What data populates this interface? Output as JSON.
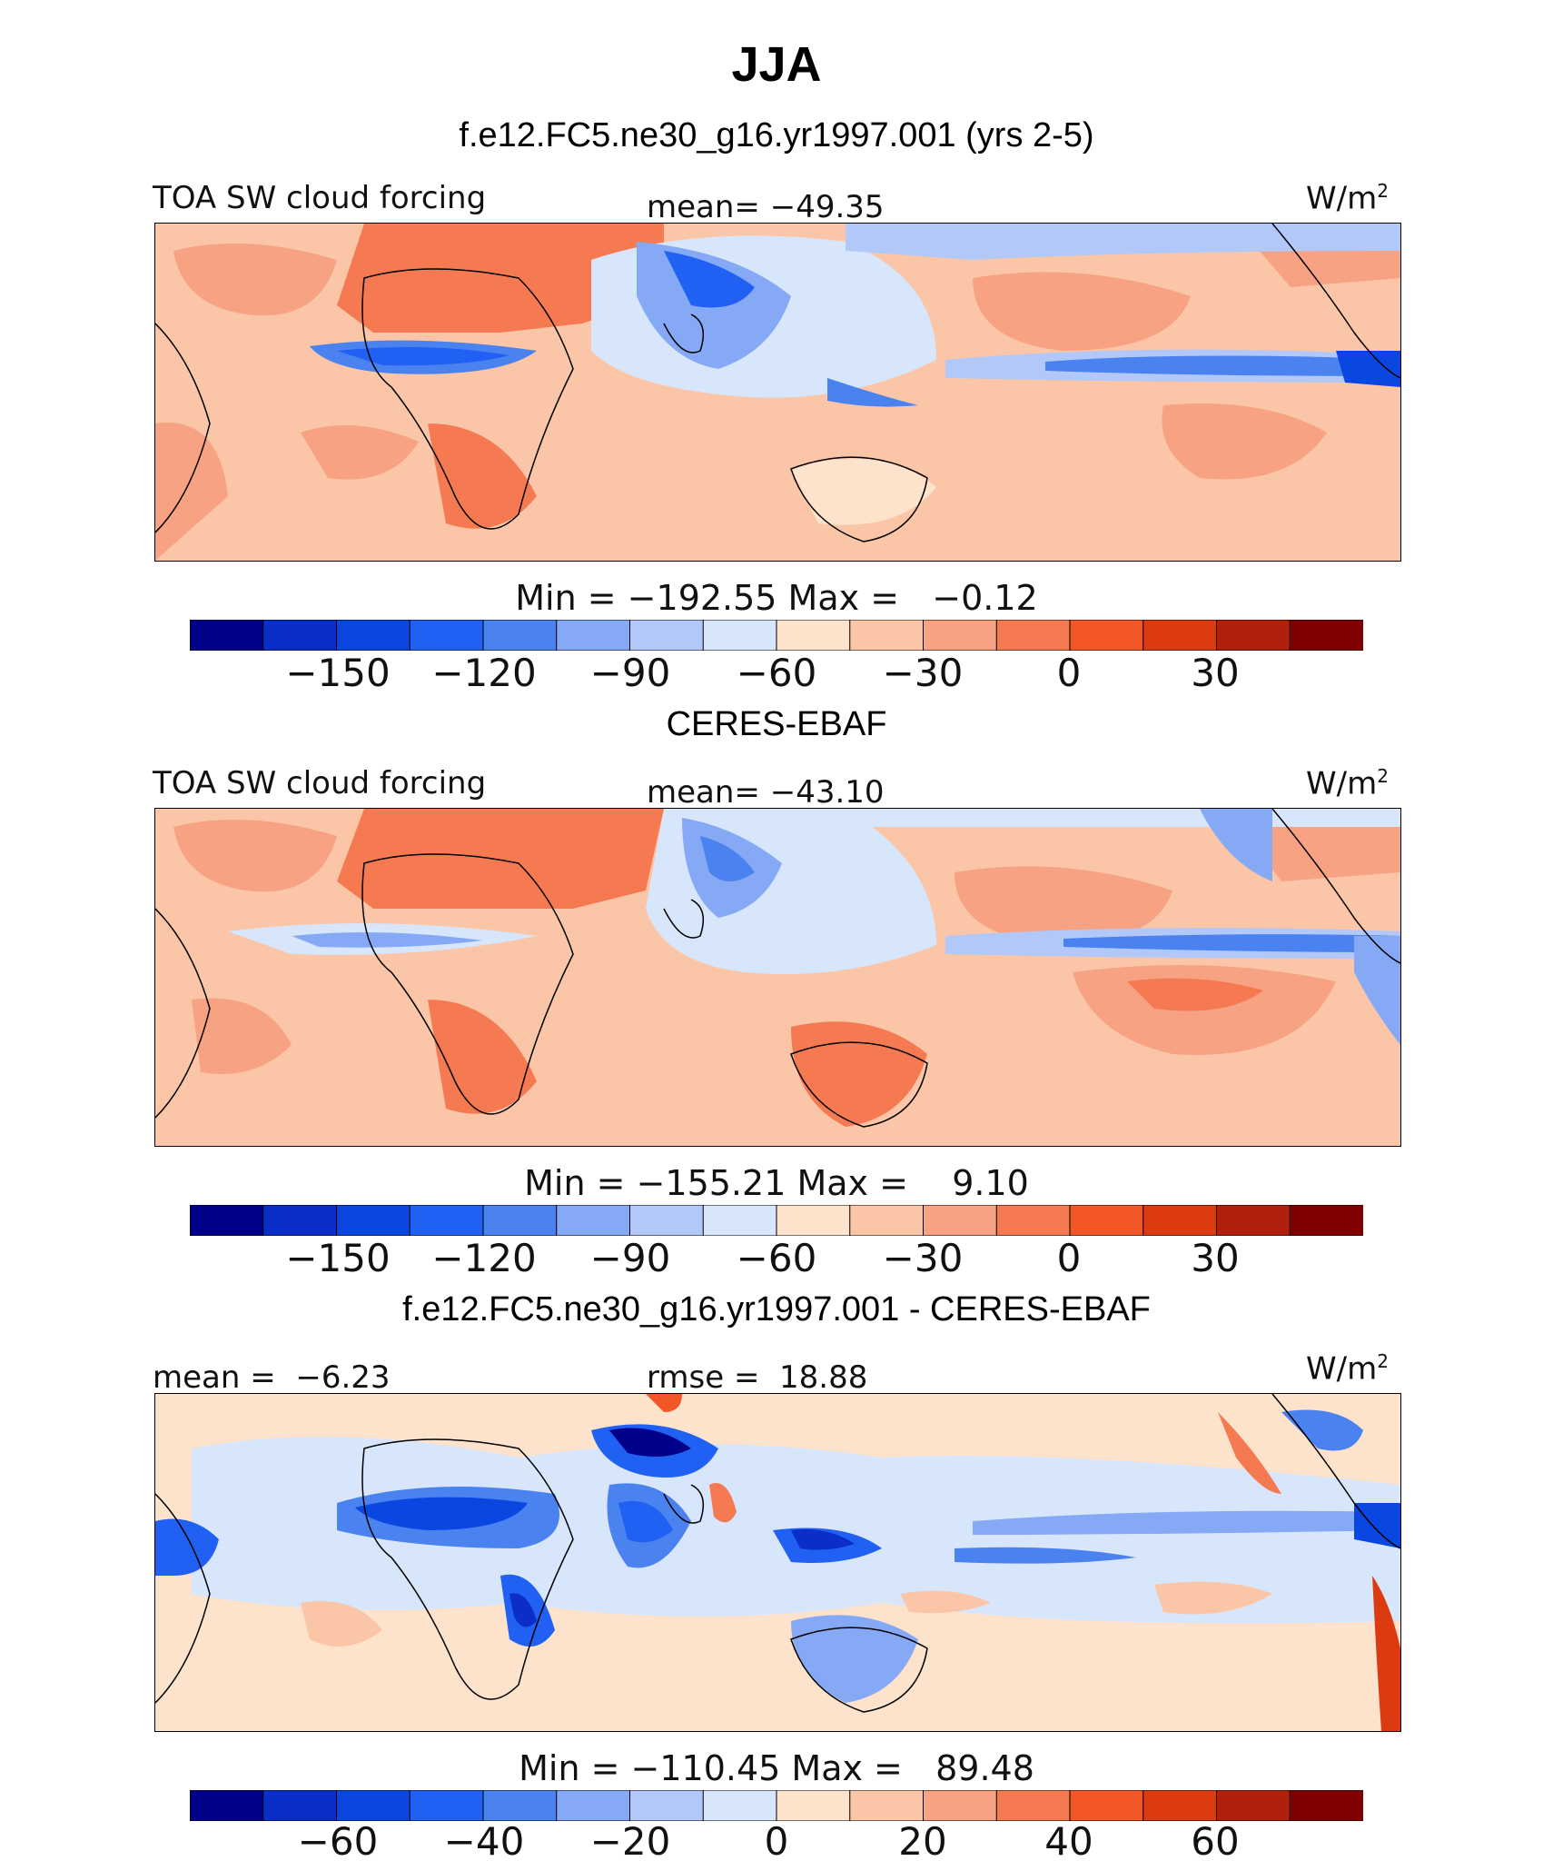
{
  "header": {
    "title": "JJA",
    "case": "f.e12.FC5.ne30_g16.yr1997.001 (yrs 2-5)"
  },
  "panels": [
    {
      "title": "",
      "left": "TOA SW cloud forcing",
      "center": "mean= −49.35",
      "units": "W/m",
      "units_sup": "2",
      "minmax": "Min = −192.55 Max =   −0.12"
    },
    {
      "title": "CERES-EBAF",
      "left": "TOA SW cloud forcing",
      "center": "mean= −43.10",
      "units": "W/m",
      "units_sup": "2",
      "minmax": "Min = −155.21 Max =    9.10"
    },
    {
      "title": "f.e12.FC5.ne30_g16.yr1997.001 - CERES-EBAF",
      "left": "mean =  −6.23",
      "center": "rmse =  18.88",
      "units": "W/m",
      "units_sup": "2",
      "minmax": "Min = −110.45 Max =   89.48"
    }
  ],
  "colors": {
    "palette": [
      "#00008b",
      "#0b2ec8",
      "#0a47e0",
      "#2060f2",
      "#4a82ef",
      "#86a9f5",
      "#b2c8f8",
      "#d8e6fc",
      "#fde2cc",
      "#fbc6a8",
      "#f7a282",
      "#f57a52",
      "#f35728",
      "#dc3a10",
      "#b0200c",
      "#800000"
    ]
  },
  "chart_data": [
    {
      "type": "heatmap",
      "title": "TOA SW cloud forcing",
      "colorbar_ticks": [
        "−150",
        "−120",
        "−90",
        "−60",
        "−30",
        "0",
        "30"
      ],
      "colorbar_levels": [
        -165,
        -150,
        -135,
        -120,
        -105,
        -90,
        -75,
        -60,
        -45,
        -30,
        -15,
        0,
        15,
        30,
        45
      ],
      "mean": -49.35,
      "min": -192.55,
      "max": -0.12,
      "units": "W/m2"
    },
    {
      "type": "heatmap",
      "title": "TOA SW cloud forcing",
      "colorbar_ticks": [
        "−150",
        "−120",
        "−90",
        "−60",
        "−30",
        "0",
        "30"
      ],
      "colorbar_levels": [
        -165,
        -150,
        -135,
        -120,
        -105,
        -90,
        -75,
        -60,
        -45,
        -30,
        -15,
        0,
        15,
        30,
        45
      ],
      "mean": -43.1,
      "min": -155.21,
      "max": 9.1,
      "units": "W/m2"
    },
    {
      "type": "heatmap",
      "title": "f.e12.FC5.ne30_g16.yr1997.001 - CERES-EBAF",
      "colorbar_ticks": [
        "−60",
        "−40",
        "−20",
        "0",
        "20",
        "40",
        "60"
      ],
      "colorbar_levels": [
        -70,
        -60,
        -50,
        -40,
        -30,
        -20,
        -10,
        0,
        10,
        20,
        30,
        40,
        50,
        60,
        70
      ],
      "mean": -6.23,
      "rmse": 18.88,
      "min": -110.45,
      "max": 89.48,
      "units": "W/m2"
    }
  ]
}
